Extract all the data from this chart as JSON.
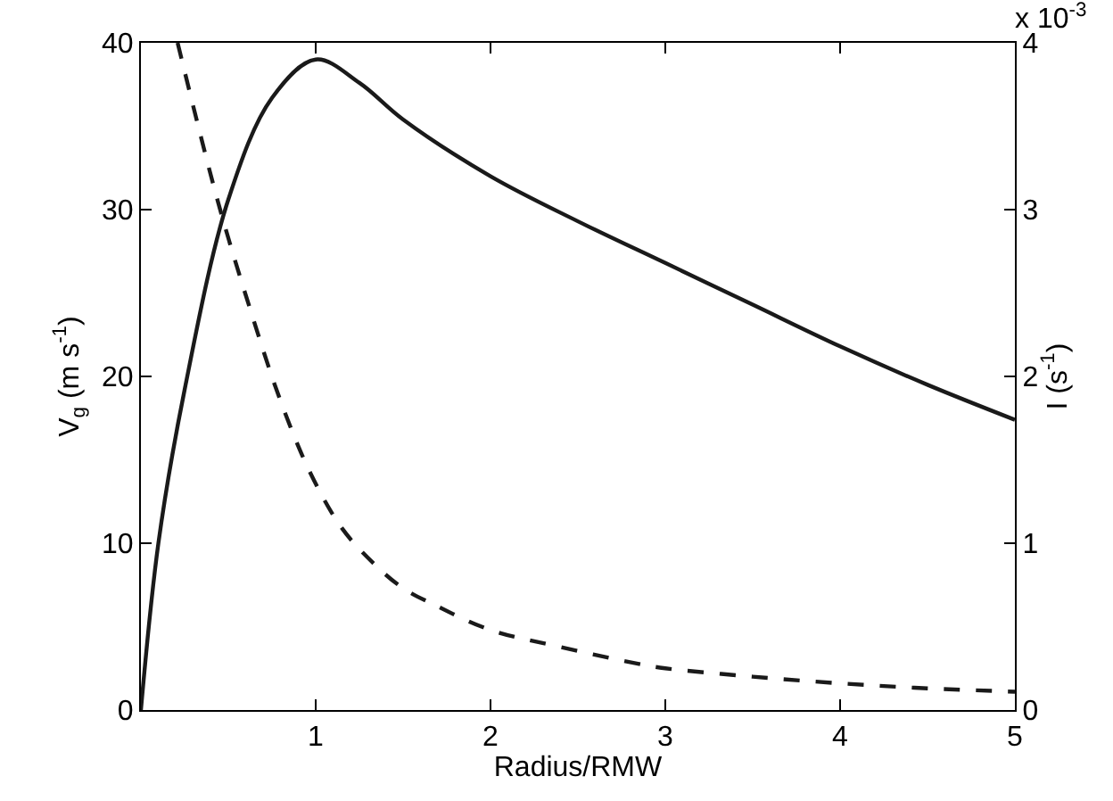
{
  "chart_data": {
    "type": "line",
    "xlabel": "Radius/RMW",
    "ylabel": "V$_{g}$ (m s$^{-1}$)",
    "y2label": "I (s$^{-1}$)",
    "annotations": [
      "x 10$^{-3}$"
    ],
    "xlim": [
      0,
      5
    ],
    "xticks": [
      1,
      2,
      3,
      4,
      5
    ],
    "ylim": [
      0,
      40
    ],
    "yticks": [
      0,
      10,
      20,
      30,
      40
    ],
    "y2lim": [
      0,
      4
    ],
    "y2ticks": [
      0,
      1,
      2,
      3,
      4
    ],
    "series": [
      {
        "color": "#1a1a1a",
        "line_style": "solid",
        "x": [
          0,
          0.1,
          0.25,
          0.5,
          0.75,
          1,
          1.25,
          1.5,
          2,
          2.5,
          3,
          3.5,
          4,
          4.5,
          5
        ],
        "values": [
          0,
          10,
          19.2,
          30.6,
          36.7,
          39,
          37.6,
          35.4,
          32,
          29.3,
          26.8,
          24.3,
          21.8,
          19.5,
          17.4
        ]
      },
      {
        "color": "#1a1a1a",
        "line_style": "dashed",
        "axis": "y2",
        "x": [
          0.21,
          0.44,
          0.62,
          0.8,
          0.97,
          1.15,
          1.33,
          1.5,
          1.68,
          2,
          2.39,
          2.88,
          3,
          3.5,
          4,
          4.5,
          5
        ],
        "values": [
          4,
          3.05,
          2.42,
          1.85,
          1.42,
          1.09,
          0.88,
          0.73,
          0.63,
          0.48,
          0.38,
          0.27,
          0.25,
          0.2,
          0.16,
          0.13,
          0.11
        ]
      }
    ]
  }
}
